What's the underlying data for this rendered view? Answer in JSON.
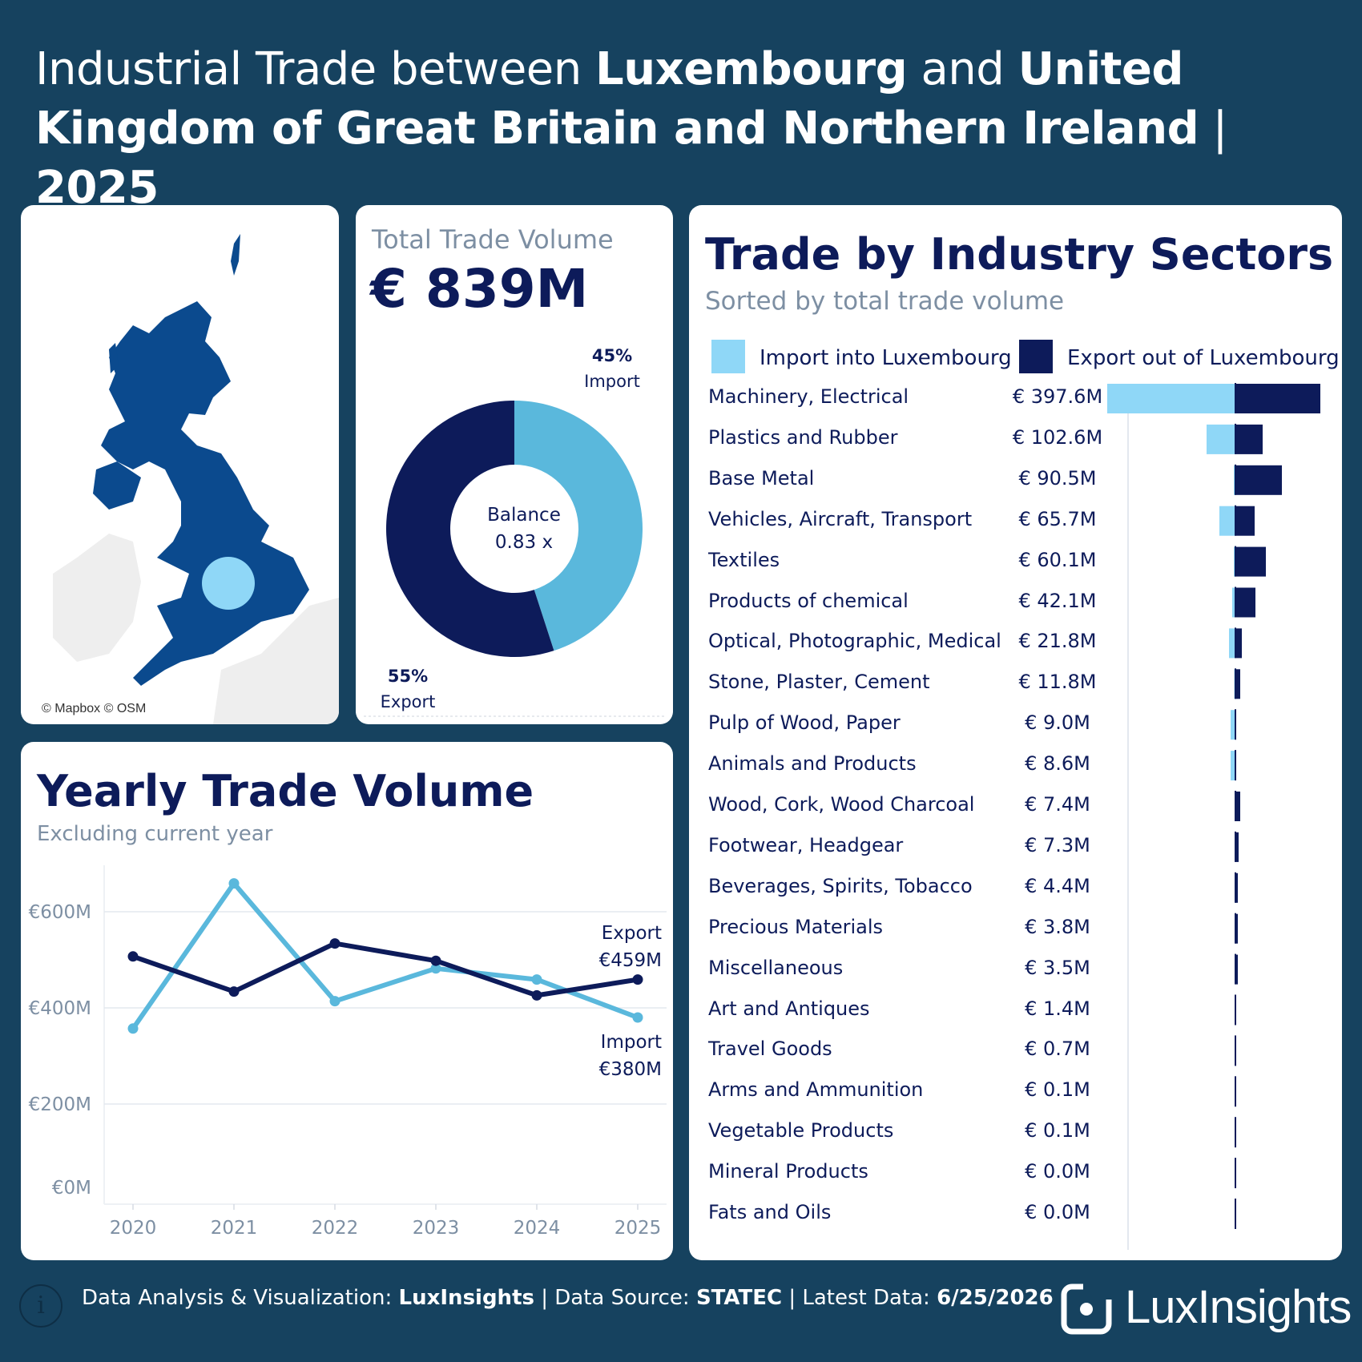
{
  "colors": {
    "background": "#16425f",
    "import": "#5ab8dc",
    "import_light": "#8fd7f7",
    "export": "#0d1b5a",
    "map_land": "#0b4a8e",
    "grid": "#e3e8ef",
    "muted": "#7d8fa3"
  },
  "header": {
    "title_part1": "Industrial Trade between ",
    "country1": "Luxembourg",
    "title_and": " and ",
    "country2": "United Kingdom of Great Britain and Northern Ireland",
    "title_sep": " | ",
    "year": "2025"
  },
  "map": {
    "credit": "© Mapbox © OSM"
  },
  "total": {
    "label": "Total Trade Volume",
    "value": "€ 839M",
    "import_pct": "45%",
    "import_label": "Import",
    "export_pct": "55%",
    "export_label": "Export",
    "import_share": 0.45,
    "export_share": 0.55,
    "balance_label": "Balance",
    "balance_value": "0.83 x"
  },
  "sectors": {
    "title": "Trade by Industry Sectors",
    "subtitle": "Sorted by total trade volume",
    "legend_import": "Import into Luxembourg",
    "legend_export": "Export out of Luxembourg"
  },
  "yearly": {
    "title": "Yearly Trade Volume",
    "subtitle": "Excluding current year",
    "export_label": "Export",
    "export_value": "€459M",
    "import_label": "Import",
    "import_value": "€380M"
  },
  "footer": {
    "prefix": "Data Analysis & Visualization: ",
    "brand": "LuxInsights",
    "sep1": " | Data Source: ",
    "source": "STATEC",
    "sep2": " | Latest Data: ",
    "date": "6/25/2026",
    "logo_text": "LuxInsights",
    "info_glyph": "i"
  },
  "chart_data": [
    {
      "type": "pie",
      "title": "Total Trade Volume",
      "series": [
        {
          "name": "Import",
          "value": 45
        },
        {
          "name": "Export",
          "value": 55
        }
      ]
    },
    {
      "type": "bar",
      "title": "Trade by Industry Sectors",
      "subtitle": "Sorted by total trade volume",
      "categories": [
        "Machinery, Electrical",
        "Plastics and Rubber",
        "Base Metal",
        "Vehicles, Aircraft, Transport",
        "Textiles",
        "Products of chemical",
        "Optical, Photographic, Medical",
        "Stone, Plaster, Cement",
        "Pulp of Wood, Paper",
        "Animals and Products",
        "Wood, Cork, Wood Charcoal",
        "Footwear, Headgear",
        "Beverages, Spirits, Tobacco",
        "Precious Materials",
        "Miscellaneous",
        "Art and Antiques",
        "Travel Goods",
        "Arms and Ammunition",
        "Vegetable Products",
        "Mineral Products",
        "Fats and Oils"
      ],
      "totals": [
        "€ 397.6M",
        "€ 102.6M",
        "€ 90.5M",
        "€ 65.7M",
        "€ 60.1M",
        "€ 42.1M",
        "€ 21.8M",
        "€ 11.8M",
        "€ 9.0M",
        "€ 8.6M",
        "€ 7.4M",
        "€ 7.3M",
        "€ 4.4M",
        "€ 3.8M",
        "€ 3.5M",
        "€ 1.4M",
        "€ 0.7M",
        "€ 0.1M",
        "€ 0.1M",
        "€ 0.0M",
        "€ 0.0M"
      ],
      "series": [
        {
          "name": "Import into Luxembourg",
          "values": [
            160,
            36,
            2,
            20,
            2,
            4,
            8,
            1.5,
            6,
            6,
            0.5,
            0.3,
            0.4,
            0.3,
            0.3,
            0.2,
            0.1,
            0.05,
            0.05,
            0,
            0
          ]
        },
        {
          "name": "Export out of Luxembourg",
          "values": [
            106,
            34,
            58,
            24,
            38,
            25,
            8,
            6,
            1,
            1,
            6,
            4,
            3,
            3,
            3,
            1,
            0.5,
            0.05,
            0.05,
            0,
            0
          ]
        }
      ]
    },
    {
      "type": "line",
      "title": "Yearly Trade Volume",
      "subtitle": "Excluding current year",
      "x": [
        "2020",
        "2021",
        "2022",
        "2023",
        "2024",
        "2025"
      ],
      "yticks": [
        "€0M",
        "€200M",
        "€400M",
        "€600M"
      ],
      "ylim": [
        0,
        700
      ],
      "series": [
        {
          "name": "Export",
          "values": [
            507,
            434,
            534,
            498,
            426,
            459
          ]
        },
        {
          "name": "Import",
          "values": [
            357,
            659,
            414,
            482,
            459,
            380
          ]
        }
      ]
    }
  ]
}
